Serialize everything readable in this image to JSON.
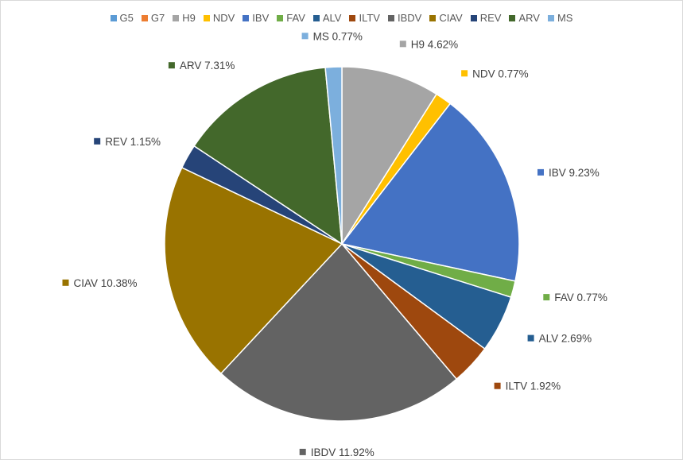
{
  "chart_data": {
    "type": "pie",
    "legend_position": "top",
    "categories": [
      "G5",
      "G7",
      "H9",
      "NDV",
      "IBV",
      "FAV",
      "ALV",
      "ILTV",
      "IBDV",
      "CIAV",
      "REV",
      "ARV",
      "MS"
    ],
    "values": [
      0,
      0,
      4.62,
      0.77,
      9.23,
      0.77,
      2.69,
      1.92,
      11.92,
      10.38,
      1.15,
      7.31,
      0.77
    ],
    "labels": [
      "",
      "",
      "H9 4.62%",
      "NDV 0.77%",
      "IBV 9.23%",
      "FAV 0.77%",
      "ALV 2.69%",
      "ILTV 1.92%",
      "IBDV 11.92%",
      "CIAV 10.38%",
      "REV 1.15%",
      "ARV 7.31%",
      "MS 0.77%"
    ],
    "colors": [
      "#5B9BD5",
      "#ED7D31",
      "#A5A5A5",
      "#FFC000",
      "#4472C4",
      "#70AD47",
      "#255E91",
      "#9E480E",
      "#636363",
      "#997300",
      "#264478",
      "#43682B",
      "#7CAFDD"
    ]
  }
}
